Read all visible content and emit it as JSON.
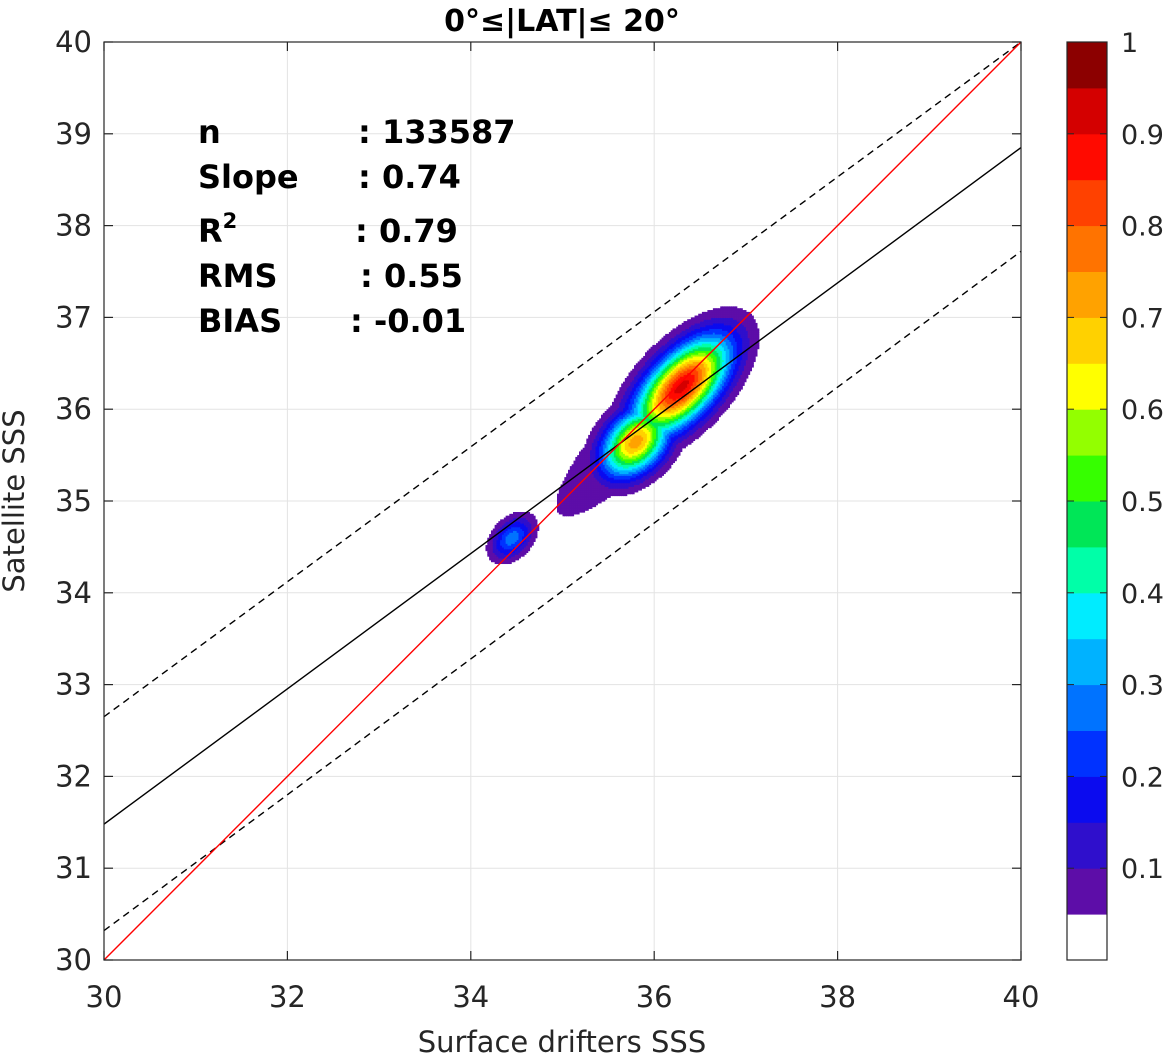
{
  "chart_data": {
    "type": "heatmap",
    "title": "0°≤|LAT|≤ 20°",
    "xlabel": "Surface drifters SSS",
    "ylabel": "Satellite SSS",
    "xlim": [
      30,
      40
    ],
    "ylim": [
      30,
      40
    ],
    "xticks": [
      "30",
      "32",
      "34",
      "36",
      "38",
      "40"
    ],
    "yticks": [
      "30",
      "31",
      "32",
      "33",
      "34",
      "35",
      "36",
      "37",
      "38",
      "39",
      "40"
    ],
    "grid": true,
    "stats": [
      {
        "label": "n",
        "value": ": 133587"
      },
      {
        "label": "Slope",
        "value": ": 0.74"
      },
      {
        "label": "R",
        "value": ": 0.79"
      },
      {
        "label": "RMS",
        "value": ": 0.55"
      },
      {
        "label": "BIAS",
        "value": ": -0.01"
      }
    ],
    "r2_superscript": "2",
    "lines": {
      "identity": {
        "x": [
          30,
          40
        ],
        "y": [
          30,
          40
        ],
        "color": "#ff0000"
      },
      "fit": {
        "x": [
          30,
          40
        ],
        "y": [
          31.48,
          38.85
        ],
        "color": "#000000"
      },
      "upper_bound": {
        "x": [
          30,
          40
        ],
        "y": [
          32.65,
          40.0
        ],
        "color": "#000000",
        "dashed": true
      },
      "lower_bound": {
        "x": [
          30,
          40
        ],
        "y": [
          30.32,
          37.72
        ],
        "color": "#000000",
        "dashed": true
      }
    },
    "density": {
      "center": [
        35.9,
        35.85
      ],
      "direction": [
        1,
        1.05
      ],
      "peaks": [
        {
          "x": 34.45,
          "y": 34.6,
          "value": 0.28,
          "sa": 0.18,
          "sb": 0.12
        },
        {
          "x": 35.8,
          "y": 35.65,
          "value": 0.73,
          "sa": 0.3,
          "sb": 0.2
        },
        {
          "x": 36.3,
          "y": 36.25,
          "value": 0.92,
          "sa": 0.45,
          "sb": 0.22
        }
      ],
      "levels": [
        0.05,
        0.1,
        0.15,
        0.2,
        0.25,
        0.3,
        0.35,
        0.4,
        0.45,
        0.5,
        0.55,
        0.6,
        0.65,
        0.7,
        0.75,
        0.8,
        0.85,
        0.9,
        0.95
      ]
    },
    "colorbar": {
      "ticks": [
        "0.1",
        "0.2",
        "0.3",
        "0.4",
        "0.5",
        "0.6",
        "0.7",
        "0.8",
        "0.9",
        "1"
      ],
      "tick_values": [
        0.1,
        0.2,
        0.3,
        0.4,
        0.5,
        0.6,
        0.7,
        0.8,
        0.9,
        1.0
      ],
      "range": [
        0,
        1
      ],
      "colors": [
        "#ffffff",
        "#5d0da8",
        "#2f0fcc",
        "#0b0bef",
        "#0032ff",
        "#0073ff",
        "#00b2ff",
        "#00ecff",
        "#00ffa8",
        "#00e657",
        "#36ff00",
        "#93ff00",
        "#ffff00",
        "#ffd100",
        "#ffa200",
        "#ff7300",
        "#ff4100",
        "#ff0a00",
        "#d40000",
        "#8c0000"
      ]
    }
  }
}
